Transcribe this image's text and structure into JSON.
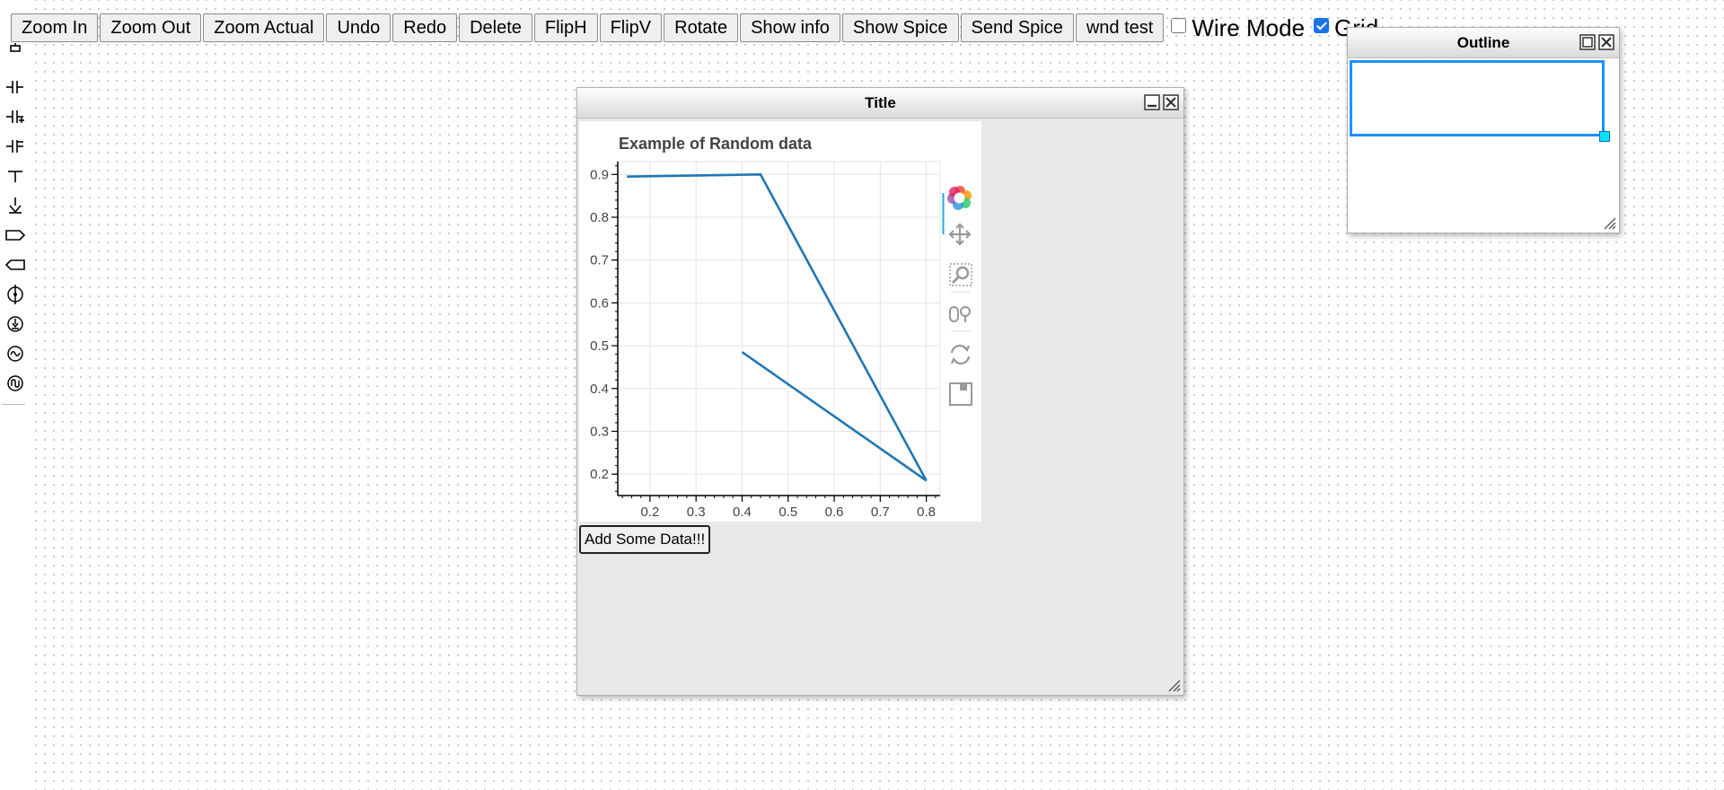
{
  "toolbar": {
    "buttons": [
      {
        "label": "Zoom In"
      },
      {
        "label": "Zoom Out"
      },
      {
        "label": "Zoom Actual"
      },
      {
        "label": "Undo"
      },
      {
        "label": "Redo"
      },
      {
        "label": "Delete"
      },
      {
        "label": "FlipH"
      },
      {
        "label": "FlipV"
      },
      {
        "label": "Rotate"
      },
      {
        "label": "Show info"
      },
      {
        "label": "Show Spice"
      },
      {
        "label": "Send Spice"
      },
      {
        "label": "wnd test"
      }
    ],
    "wire_mode": {
      "label": "Wire Mode",
      "checked": false
    },
    "grid": {
      "label": "Grid",
      "checked": true
    }
  },
  "palette": {
    "icons": [
      "resistor-icon",
      "capacitor-icon",
      "polarized-capacitor-icon",
      "variable-capacitor-icon",
      "terminal-icon",
      "ground-icon",
      "output-port-icon",
      "input-port-icon",
      "current-source-icon",
      "dependent-source-icon",
      "ac-source-icon",
      "pulse-source-icon"
    ]
  },
  "main_window": {
    "title": "Title",
    "add_button_label": "Add Some Data!!!"
  },
  "outline_window": {
    "title": "Outline"
  },
  "colors": {
    "series": "#1f77b4",
    "outline_viewport": "#1e90ff",
    "checkbox_checked": "#1a73e8"
  },
  "plot_toolbar": {
    "tools": [
      "bokeh-logo-icon",
      "pan-icon",
      "box-zoom-icon",
      "wheel-zoom-icon",
      "reset-icon",
      "save-icon"
    ],
    "active_tool": "pan-icon"
  },
  "chart_data": {
    "type": "line",
    "title": "Example of Random data",
    "xlabel": "",
    "ylabel": "",
    "x": [
      0.15,
      0.44,
      0.8,
      0.4
    ],
    "y": [
      0.895,
      0.9,
      0.185,
      0.485
    ],
    "xlim": [
      0.13,
      0.83
    ],
    "ylim": [
      0.15,
      0.93
    ],
    "xticks": [
      0.2,
      0.3,
      0.4,
      0.5,
      0.6,
      0.7,
      0.8
    ],
    "yticks": [
      0.2,
      0.3,
      0.4,
      0.5,
      0.6,
      0.7,
      0.8,
      0.9
    ],
    "grid": true
  }
}
